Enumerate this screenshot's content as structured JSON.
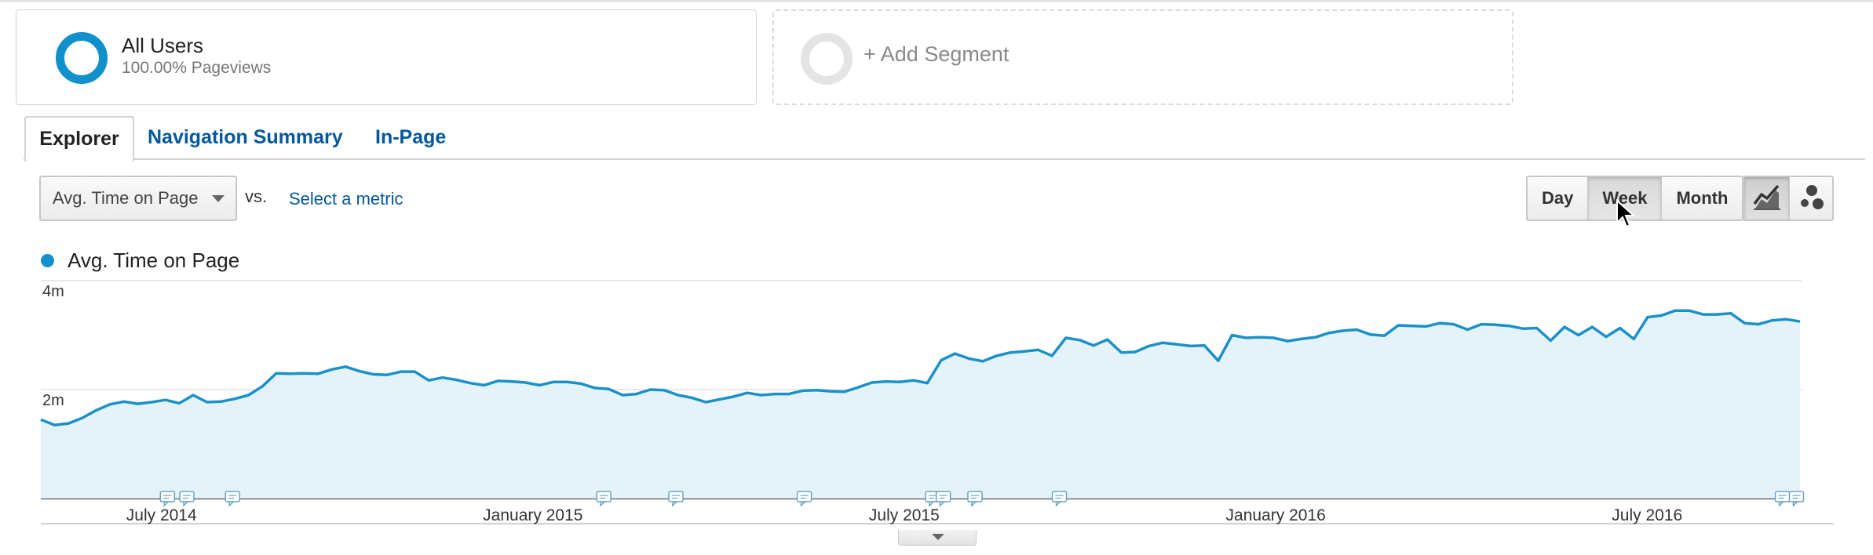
{
  "segments": {
    "all_users": {
      "title": "All Users",
      "subtitle": "100.00% Pageviews"
    },
    "add_segment_label": "+ Add Segment"
  },
  "tabs": [
    {
      "label": "Explorer",
      "active": true
    },
    {
      "label": "Navigation Summary",
      "active": false
    },
    {
      "label": "In-Page",
      "active": false
    }
  ],
  "controls": {
    "metric_selected": "Avg. Time on Page",
    "vs_label": "vs.",
    "select_metric_label": "Select a metric",
    "granularity": [
      {
        "label": "Day",
        "active": false
      },
      {
        "label": "Week",
        "active": true
      },
      {
        "label": "Month",
        "active": false
      }
    ],
    "view_buttons": [
      {
        "icon": "line-chart-icon",
        "active": true
      },
      {
        "icon": "motion-chart-icon",
        "active": false
      }
    ]
  },
  "colors": {
    "series_line": "#1b91c9",
    "series_fill": "#e5f2f9",
    "link": "#05589c"
  },
  "legend": {
    "label": "Avg. Time on Page"
  },
  "chart_data": {
    "type": "area",
    "series": [
      {
        "name": "Avg. Time on Page",
        "unit": "minutes",
        "values": [
          1.45,
          1.35,
          1.38,
          1.48,
          1.62,
          1.73,
          1.78,
          1.74,
          1.77,
          1.81,
          1.75,
          1.9,
          1.77,
          1.78,
          1.83,
          1.9,
          2.06,
          2.3,
          2.29,
          2.3,
          2.29,
          2.37,
          2.42,
          2.34,
          2.28,
          2.27,
          2.33,
          2.33,
          2.17,
          2.22,
          2.18,
          2.12,
          2.08,
          2.16,
          2.15,
          2.13,
          2.08,
          2.14,
          2.14,
          2.11,
          2.03,
          2.01,
          1.9,
          1.92,
          2.0,
          1.99,
          1.9,
          1.85,
          1.77,
          1.82,
          1.87,
          1.94,
          1.9,
          1.92,
          1.92,
          1.98,
          1.99,
          1.97,
          1.96,
          2.04,
          2.13,
          2.15,
          2.14,
          2.17,
          2.12,
          2.54,
          2.66,
          2.57,
          2.52,
          2.62,
          2.68,
          2.7,
          2.73,
          2.62,
          2.95,
          2.91,
          2.81,
          2.92,
          2.68,
          2.69,
          2.8,
          2.86,
          2.83,
          2.8,
          2.81,
          2.53,
          3.0,
          2.95,
          2.96,
          2.95,
          2.89,
          2.93,
          2.96,
          3.04,
          3.08,
          3.1,
          3.01,
          2.99,
          3.18,
          3.17,
          3.16,
          3.22,
          3.2,
          3.1,
          3.2,
          3.19,
          3.17,
          3.12,
          3.13,
          2.9,
          3.15,
          3.0,
          3.15,
          2.97,
          3.13,
          2.93,
          3.33,
          3.36,
          3.45,
          3.45,
          3.38,
          3.38,
          3.4,
          3.22,
          3.2,
          3.27,
          3.29,
          3.25
        ]
      }
    ],
    "x_ticks": [
      "July 2014",
      "January 2015",
      "July 2015",
      "January 2016",
      "July 2016"
    ],
    "y_ticks": [
      "2m",
      "4m"
    ],
    "ylim": [
      0,
      4
    ],
    "annotation_markers": 14,
    "grid": true,
    "legend_position": "top-left"
  }
}
